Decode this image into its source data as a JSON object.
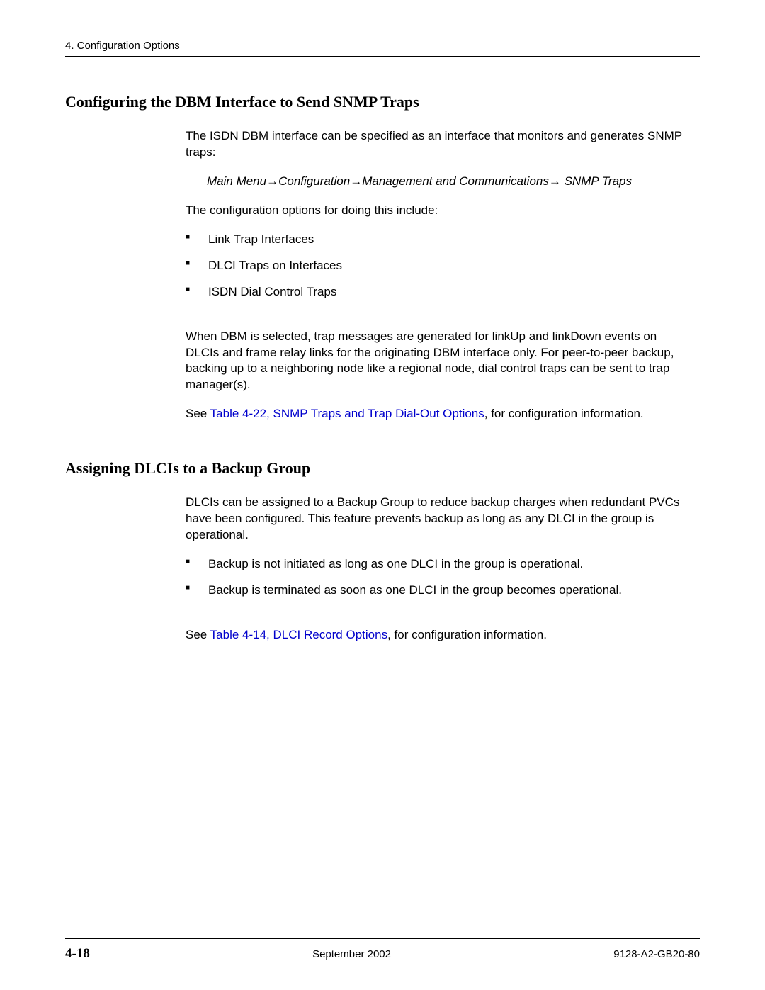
{
  "header": {
    "text": "4. Configuration Options"
  },
  "section1": {
    "heading": "Configuring the DBM Interface to Send SNMP Traps",
    "intro": "The ISDN DBM interface can be specified as an interface that monitors and generates SNMP traps:",
    "menuPath": "Main Menu→Configuration→Management and Communications→ SNMP Traps",
    "optionsIntro": "The configuration options for doing this include:",
    "options": [
      "Link Trap Interfaces",
      "DLCI Traps on Interfaces",
      "ISDN Dial Control Traps"
    ],
    "description": "When DBM is selected, trap messages are generated for linkUp and linkDown events on DLCIs and frame relay links for the originating DBM interface only. For peer-to-peer backup, backing up to a neighboring node like a regional node, dial control traps can be sent to trap manager(s).",
    "seePrefix": "See ",
    "seeLink": "Table 4-22, SNMP Traps and Trap Dial-Out Options",
    "seeSuffix": ", for configuration information."
  },
  "section2": {
    "heading": "Assigning DLCIs to a Backup Group",
    "intro": "DLCIs can be assigned to a Backup Group to reduce backup charges when redundant PVCs have been configured. This feature prevents backup as long as any DLCI in the group is operational.",
    "bullets": [
      "Backup is not initiated as long as one DLCI in the group is operational.",
      "Backup is terminated as soon as one DLCI in the group becomes operational."
    ],
    "seePrefix": "See ",
    "seeLink": "Table 4-14, DLCI Record Options",
    "seeSuffix": ", for configuration information."
  },
  "footer": {
    "page": "4-18",
    "date": "September 2002",
    "docId": "9128-A2-GB20-80"
  },
  "colors": {
    "text": "#000000",
    "link": "#0000cc",
    "background": "#ffffff"
  }
}
